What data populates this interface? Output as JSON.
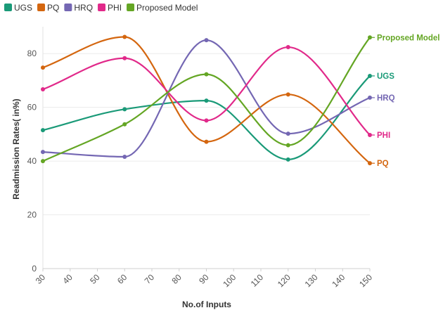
{
  "chart_data": {
    "type": "line",
    "xlabel": "No.of Inputs",
    "ylabel": "Readmission Rates( in%)",
    "x_ticks": [
      30,
      40,
      50,
      60,
      70,
      80,
      90,
      100,
      110,
      120,
      130,
      140,
      150
    ],
    "y_ticks": [
      0,
      20,
      40,
      60,
      80
    ],
    "xlim": [
      30,
      150
    ],
    "ylim": [
      0,
      90
    ],
    "grid": "horizontal",
    "legend_position": "top-left",
    "x": [
      30,
      60,
      90,
      120,
      150
    ],
    "series": [
      {
        "name": "UGS",
        "color": "#1a9a78",
        "values": [
          51.5,
          59.3,
          62.5,
          40.6,
          71.7
        ]
      },
      {
        "name": "PQ",
        "color": "#d4660f",
        "values": [
          74.8,
          86.2,
          47.2,
          64.8,
          39.2
        ]
      },
      {
        "name": "HRQ",
        "color": "#7467b3",
        "values": [
          43.4,
          41.6,
          85.0,
          50.2,
          63.6
        ]
      },
      {
        "name": "PHI",
        "color": "#e1298a",
        "values": [
          66.7,
          78.3,
          55.1,
          82.4,
          49.7
        ]
      },
      {
        "name": "Proposed Model",
        "color": "#64a624",
        "values": [
          40.0,
          53.7,
          72.3,
          45.9,
          86.0
        ]
      }
    ]
  }
}
